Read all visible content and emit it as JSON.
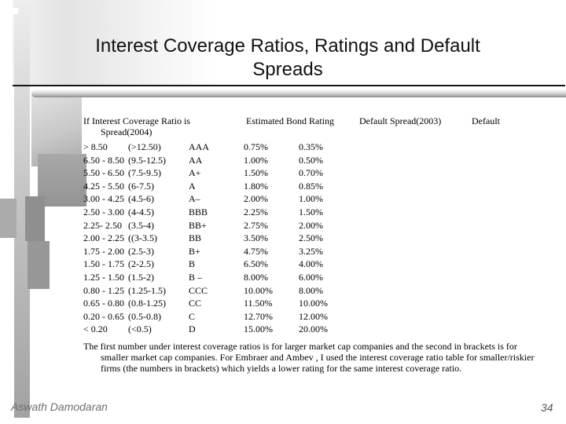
{
  "title": {
    "line1": "Interest Coverage Ratios, Ratings and Default",
    "line2": "Spreads"
  },
  "table": {
    "header": {
      "col_ratio": "If Interest Coverage Ratio is",
      "col_ratio_wrap": "Spread(2004)",
      "col_rating": "Estimated Bond Rating",
      "col_spread_2003": "Default Spread(2003)",
      "col_spread_2004": "Default"
    },
    "rows": [
      {
        "ratio_large": "> 8.50",
        "ratio_small": "(>12.50)",
        "rating": "AAA",
        "spread_2003": "0.75%",
        "spread_2004": "0.35%"
      },
      {
        "ratio_large": "6.50 - 8.50",
        "ratio_small": "(9.5-12.5)",
        "rating": "AA",
        "spread_2003": "1.00%",
        "spread_2004": "0.50%"
      },
      {
        "ratio_large": "5.50 - 6.50",
        "ratio_small": "(7.5-9.5)",
        "rating": "A+",
        "spread_2003": "1.50%",
        "spread_2004": "0.70%"
      },
      {
        "ratio_large": "4.25 - 5.50",
        "ratio_small": "(6-7.5)",
        "rating": "A",
        "spread_2003": "1.80%",
        "spread_2004": "0.85%"
      },
      {
        "ratio_large": "3.00 - 4.25",
        "ratio_small": "(4.5-6)",
        "rating": "A–",
        "spread_2003": "2.00%",
        "spread_2004": "1.00%"
      },
      {
        "ratio_large": "2.50 - 3.00",
        "ratio_small": "(4-4.5)",
        "rating": "BBB",
        "spread_2003": "2.25%",
        "spread_2004": "1.50%"
      },
      {
        "ratio_large": "2.25- 2.50",
        "ratio_small": "(3.5-4)",
        "rating": "BB+",
        "spread_2003": "2.75%",
        "spread_2004": "2.00%"
      },
      {
        "ratio_large": "2.00 - 2.25",
        "ratio_small": "((3-3.5)",
        "rating": "BB",
        "spread_2003": "3.50%",
        "spread_2004": "2.50%"
      },
      {
        "ratio_large": "1.75 - 2.00",
        "ratio_small": "(2.5-3)",
        "rating": "B+",
        "spread_2003": "4.75%",
        "spread_2004": "3.25%"
      },
      {
        "ratio_large": "1.50 - 1.75",
        "ratio_small": "(2-2.5)",
        "rating": "B",
        "spread_2003": "6.50%",
        "spread_2004": "4.00%"
      },
      {
        "ratio_large": "1.25 - 1.50",
        "ratio_small": "(1.5-2)",
        "rating": "B –",
        "spread_2003": "8.00%",
        "spread_2004": "6.00%"
      },
      {
        "ratio_large": "0.80 - 1.25",
        "ratio_small": "(1.25-1.5)",
        "rating": "CCC",
        "spread_2003": "10.00%",
        "spread_2004": "8.00%"
      },
      {
        "ratio_large": "0.65 - 0.80",
        "ratio_small": "(0.8-1.25)",
        "rating": "CC",
        "spread_2003": "11.50%",
        "spread_2004": "10.00%"
      },
      {
        "ratio_large": "0.20 - 0.65",
        "ratio_small": "(0.5-0.8)",
        "rating": "C",
        "spread_2003": "12.70%",
        "spread_2004": "12.00%"
      },
      {
        "ratio_large": "< 0.20",
        "ratio_small": "(<0.5)",
        "rating": "D",
        "spread_2003": "15.00%",
        "spread_2004": "20.00%"
      }
    ]
  },
  "footnote": {
    "lines": [
      "The first number under interest coverage ratios is for larger market cap companies and the second in brackets is for",
      "smaller market cap companies. For Embraer and Ambev , I used the interest coverage ratio table for smaller/riskier",
      "firms (the numbers in brackets) which yields a lower rating for the same interest coverage ratio."
    ]
  },
  "footer": {
    "author": "Aswath Damodaran",
    "page_number": "34"
  },
  "colors": {
    "background": "#ffffff",
    "text": "#000000",
    "footer_text": "#6e6e6e",
    "decor_gray_light": "#e3e3e3",
    "decor_gray_dark": "#8f8f8f",
    "rule": "#141414"
  }
}
